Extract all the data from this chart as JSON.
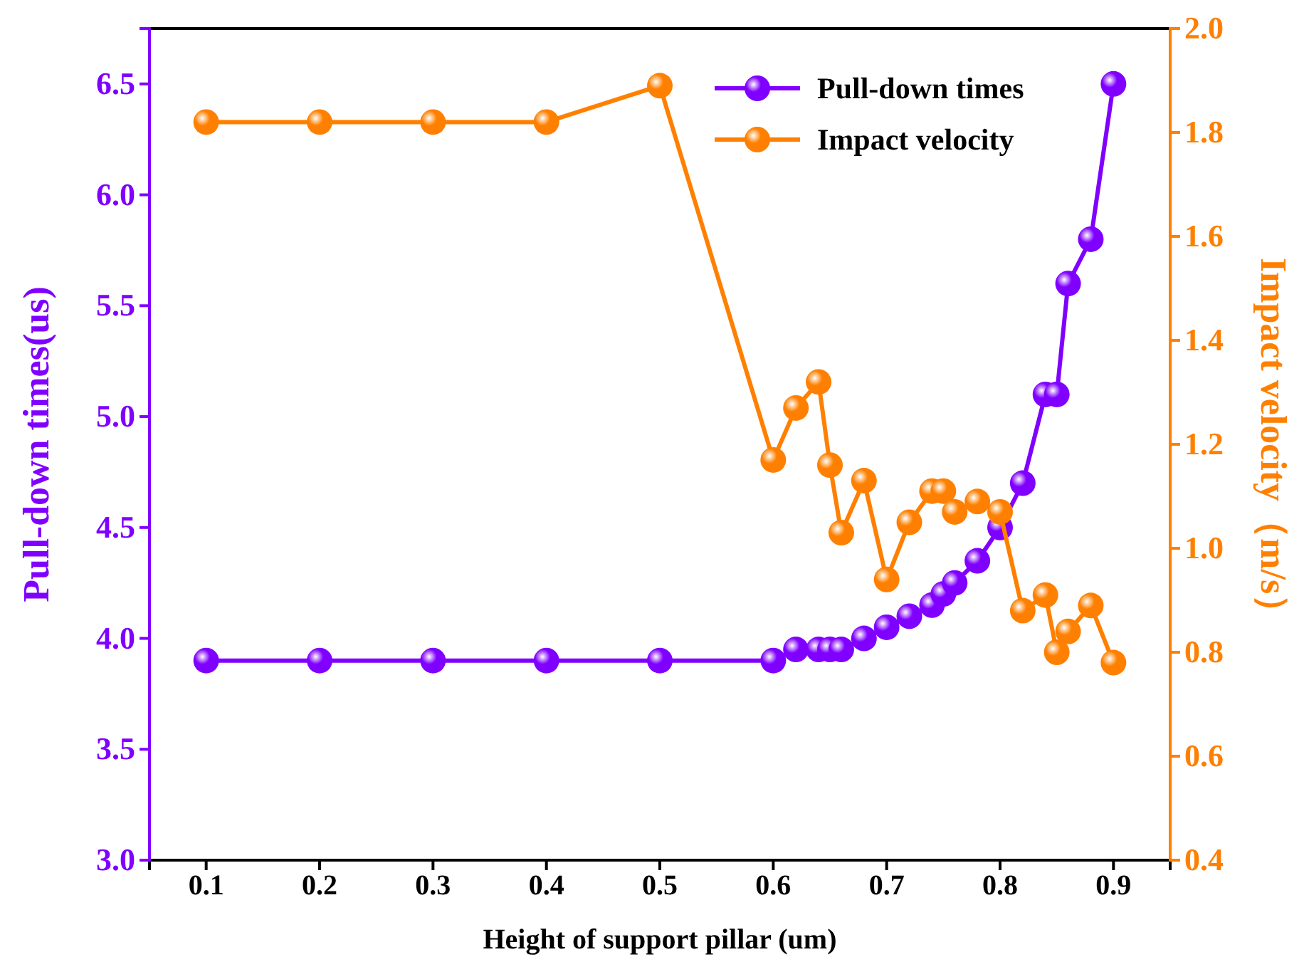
{
  "chart_data": {
    "type": "line",
    "xlabel": "Height of support pillar (um)",
    "ylabel": "Pull-down times(us)",
    "y2label": "Impact velocity（m/s）",
    "x": [
      0.1,
      0.2,
      0.3,
      0.4,
      0.5,
      0.6,
      0.62,
      0.64,
      0.65,
      0.66,
      0.68,
      0.7,
      0.72,
      0.74,
      0.75,
      0.76,
      0.78,
      0.8,
      0.82,
      0.84,
      0.85,
      0.86,
      0.88,
      0.9
    ],
    "series": [
      {
        "name": "Pull-down times",
        "color": "#8000ff",
        "values": [
          3.9,
          3.9,
          3.9,
          3.9,
          3.9,
          3.9,
          3.95,
          3.95,
          3.95,
          3.95,
          4.0,
          4.05,
          4.1,
          4.15,
          4.2,
          4.25,
          4.35,
          4.5,
          4.7,
          5.1,
          5.1,
          5.6,
          5.8,
          6.5
        ]
      },
      {
        "name": "Impact velocity",
        "color": "#ff8000",
        "axis": "y2",
        "values": [
          1.82,
          1.82,
          1.82,
          1.82,
          1.89,
          1.17,
          1.27,
          1.32,
          1.16,
          1.03,
          1.13,
          0.94,
          1.05,
          1.11,
          1.11,
          1.07,
          1.09,
          1.07,
          0.88,
          0.91,
          0.8,
          0.84,
          0.89,
          0.78
        ]
      }
    ],
    "xlim": [
      0.05,
      0.95
    ],
    "xticks": [
      0.1,
      0.2,
      0.3,
      0.4,
      0.5,
      0.6,
      0.7,
      0.8,
      0.9
    ],
    "ylim": [
      3.0,
      6.75
    ],
    "yticks": [
      {
        "value": 3,
        "label": "3.0"
      },
      {
        "value": 3.5,
        "label": "3.5"
      },
      {
        "value": 4,
        "label": "4.0"
      },
      {
        "value": 4.5,
        "label": "4.5"
      },
      {
        "value": 5,
        "label": "5.0"
      },
      {
        "value": 5.5,
        "label": "5.5"
      },
      {
        "value": 6,
        "label": "6.0"
      },
      {
        "value": 6.5,
        "label": "6.5"
      }
    ],
    "y2lim": [
      0.4,
      2.0
    ],
    "y2ticks": [
      0.4,
      0.6,
      0.8,
      {
        "value": 1,
        "label": "1.0"
      },
      1.2,
      1.4,
      1.6,
      1.8,
      {
        "value": 2,
        "label": "2.0"
      }
    ],
    "marker": "circle",
    "line_style": "solid",
    "legend": "top right",
    "grid": false
  }
}
